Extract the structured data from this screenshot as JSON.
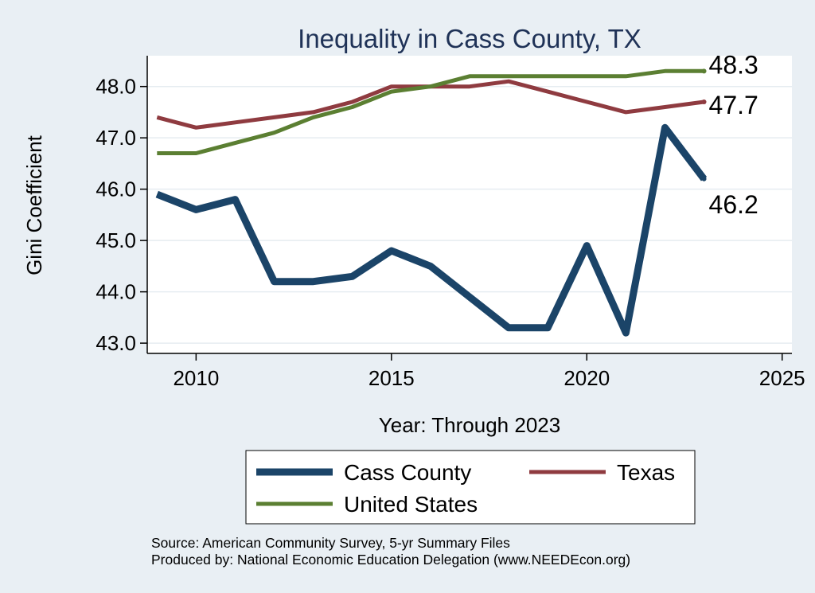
{
  "chart_data": {
    "type": "line",
    "title": "Inequality in Cass County, TX",
    "xlabel": "Year: Through 2023",
    "ylabel": "Gini Coefficient",
    "xlim": [
      2008.75,
      2025.25
    ],
    "ylim": [
      42.8,
      48.6
    ],
    "x_ticks": [
      2010,
      2015,
      2020,
      2025
    ],
    "y_ticks": [
      43.0,
      44.0,
      45.0,
      46.0,
      47.0,
      48.0
    ],
    "x": [
      2009,
      2010,
      2011,
      2012,
      2013,
      2014,
      2015,
      2016,
      2017,
      2018,
      2019,
      2020,
      2021,
      2022,
      2023
    ],
    "series": [
      {
        "name": "Cass County",
        "color": "#1b4468",
        "values": [
          45.9,
          45.6,
          45.8,
          44.2,
          44.2,
          44.3,
          44.8,
          44.5,
          43.9,
          43.3,
          43.3,
          44.9,
          43.2,
          47.2,
          46.2
        ],
        "end_label": "46.2"
      },
      {
        "name": "Texas",
        "color": "#8f3b40",
        "values": [
          47.4,
          47.2,
          47.3,
          47.4,
          47.5,
          47.7,
          48.0,
          48.0,
          48.0,
          48.1,
          47.9,
          47.7,
          47.5,
          47.6,
          47.7
        ],
        "end_label": "47.7"
      },
      {
        "name": "United States",
        "color": "#5b7f32",
        "values": [
          46.7,
          46.7,
          46.9,
          47.1,
          47.4,
          47.6,
          47.9,
          48.0,
          48.2,
          48.2,
          48.2,
          48.2,
          48.2,
          48.3,
          48.3
        ],
        "end_label": "48.3"
      }
    ],
    "legend": {
      "position": "bottom",
      "items": [
        "Cass County",
        "Texas",
        "United States"
      ]
    },
    "source_lines": [
      "Source: American Community Survey, 5-yr Summary Files",
      "Produced by: National Economic Education Delegation (www.NEEDEcon.org)"
    ]
  }
}
